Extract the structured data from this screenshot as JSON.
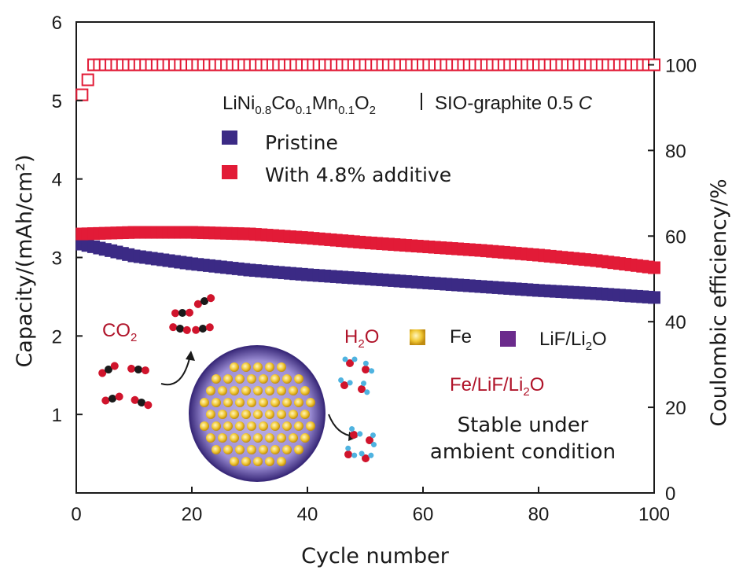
{
  "chart_data": {
    "type": "scatter",
    "xlabel": "Cycle number",
    "ylabel": "Capacity/(mAh/cm²)",
    "y2label": "Coulombic efficiency/%",
    "xlim": [
      0,
      100
    ],
    "ylim": [
      0,
      6
    ],
    "y2lim": [
      0,
      110
    ],
    "x_ticks": [
      0,
      20,
      40,
      60,
      80,
      100
    ],
    "y_ticks": [
      1,
      2,
      3,
      4,
      5,
      6
    ],
    "y2_ticks": [
      0,
      20,
      40,
      60,
      80,
      100
    ],
    "cell_label": {
      "prefix": "LiNi",
      "s1": "0.8",
      "co": "Co",
      "s2": "0.1",
      "mn": "Mn",
      "s3": "0.1",
      "o": "O",
      "s4": "2",
      "suffix": "SIO-graphite 0.5",
      "rate": "C"
    },
    "series": [
      {
        "name": "Pristine",
        "color": "#3b2a85",
        "axis": "left",
        "x": [
          1,
          10,
          20,
          30,
          40,
          50,
          60,
          70,
          80,
          90,
          100
        ],
        "values": [
          3.17,
          3.02,
          2.92,
          2.84,
          2.78,
          2.73,
          2.68,
          2.63,
          2.58,
          2.54,
          2.49
        ]
      },
      {
        "name": "With 4.8% additive",
        "color": "#e21b37",
        "axis": "left",
        "x": [
          1,
          10,
          20,
          30,
          40,
          50,
          60,
          70,
          80,
          90,
          100
        ],
        "values": [
          3.3,
          3.32,
          3.32,
          3.3,
          3.25,
          3.19,
          3.14,
          3.09,
          3.03,
          2.96,
          2.87
        ]
      },
      {
        "name": "Coulombic efficiency",
        "color": "#e21b37",
        "axis": "right",
        "x": [
          1,
          3,
          100
        ],
        "values": [
          93,
          100,
          100
        ]
      }
    ],
    "inset": {
      "co2": {
        "main": "CO",
        "sub": "2"
      },
      "h2o": {
        "pre": "H",
        "sub": "2",
        "post": "O"
      },
      "fe": "Fe",
      "fe_color": "#e8b820",
      "lif": {
        "main": "LiF/Li",
        "sub": "2",
        "post": "O"
      },
      "lif_color": "#6b2b8c",
      "composite": {
        "a": "Fe/LiF/Li",
        "sub": "2",
        "b": "O"
      },
      "stable_line1": "Stable under",
      "stable_line2": "ambient condition"
    }
  }
}
